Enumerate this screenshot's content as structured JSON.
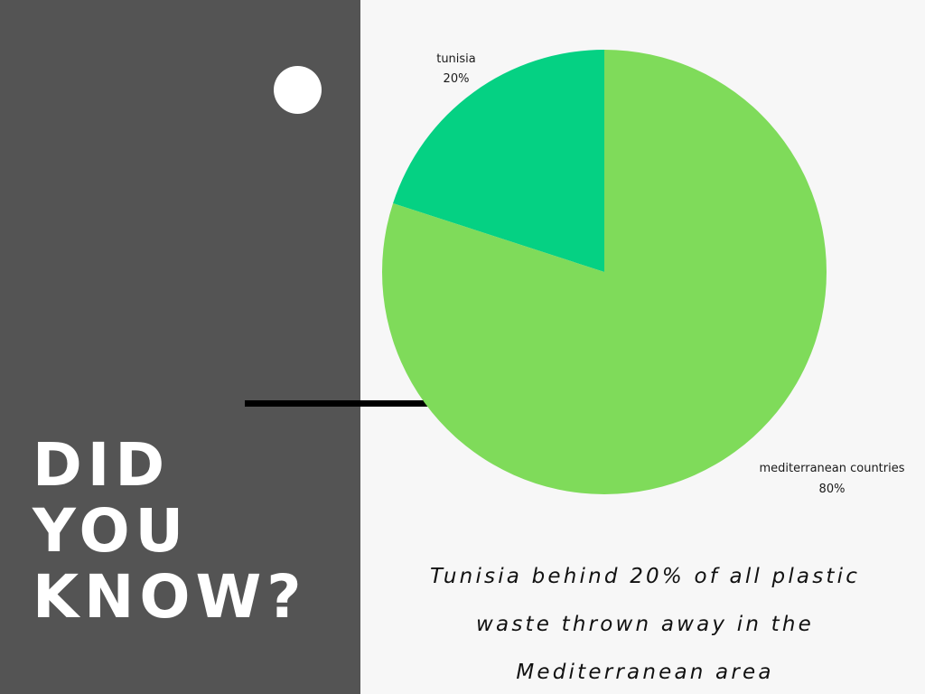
{
  "headline": {
    "lines": [
      "DID",
      "YOU",
      "KNOW?"
    ]
  },
  "caption": {
    "lines": [
      "Tunisia behind 20% of all plastic",
      "waste thrown away in the",
      "Mediterranean area"
    ]
  },
  "colors": {
    "left_panel": "#545454",
    "background": "#f7f7f7",
    "accent_dot": "#ffffff",
    "rule": "#000000"
  },
  "chart_data": {
    "type": "pie",
    "title": "",
    "slices": [
      {
        "label": "tunisia",
        "value": 20,
        "display": "20%",
        "color": "#05d183"
      },
      {
        "label": "mediterranean countries",
        "value": 80,
        "display": "80%",
        "color": "#7fdb5a"
      }
    ],
    "start_angle_deg": 0,
    "direction": "counterclockwise",
    "legend": "none"
  }
}
